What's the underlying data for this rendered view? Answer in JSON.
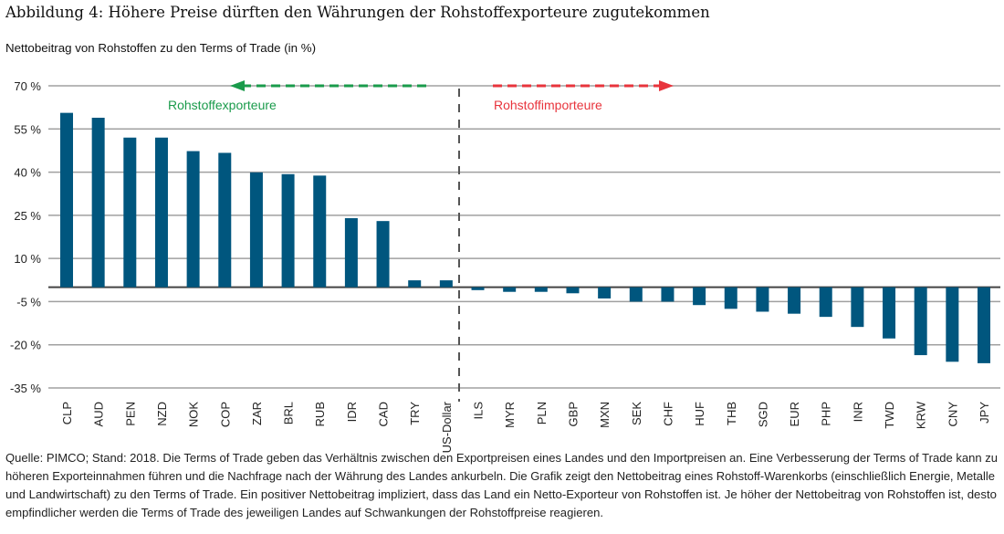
{
  "title": "Abbildung 4: Höhere Preise dürften den Währungen der Rohstoffexporteure zugutekommen",
  "chart_data": {
    "type": "bar",
    "title": "Abbildung 4: Höhere Preise dürften den Währungen der Rohstoffexporteure zugutekommen",
    "ylabel": "Nettobeitrag von Rohstoffen zu den Terms of Trade (in %)",
    "xlabel": "",
    "ylim": [
      -35,
      70
    ],
    "yticks": [
      70,
      55,
      40,
      25,
      10,
      -5,
      -20,
      -35
    ],
    "ytick_labels": [
      "70 %",
      "55 %",
      "40 %",
      "25 %",
      "10 %",
      "-5 %",
      "-20 %",
      "-35 %"
    ],
    "grid": true,
    "categories": [
      "CLP",
      "AUD",
      "PEN",
      "NZD",
      "NOK",
      "COP",
      "ZAR",
      "BRL",
      "RUB",
      "IDR",
      "CAD",
      "TRY",
      "US-Dollar",
      "ILS",
      "MYR",
      "PLN",
      "GBP",
      "MXN",
      "SEK",
      "CHF",
      "HUF",
      "THB",
      "SGD",
      "EUR",
      "PHP",
      "INR",
      "TWD",
      "KRW",
      "CNY",
      "JPY"
    ],
    "values": [
      60.6,
      58.9,
      52.0,
      52.0,
      47.3,
      46.7,
      39.9,
      39.3,
      38.8,
      24.0,
      23.0,
      2.4,
      2.4,
      -1.0,
      -1.6,
      -1.6,
      -2.1,
      -3.9,
      -5.0,
      -5.0,
      -6.2,
      -7.5,
      -8.5,
      -9.2,
      -10.3,
      -13.8,
      -17.8,
      -23.6,
      -25.9,
      -26.4
    ],
    "bar_color": "#00567e",
    "annotations": [
      {
        "text": "Rohstoffexporteure",
        "color": "#1a9b4b",
        "arrow": "left"
      },
      {
        "text": "Rohstoffimporteure",
        "color": "#e8343c",
        "arrow": "right"
      }
    ],
    "divider_after": "US-Dollar"
  },
  "footnote_lines": [
    "Quelle: PIMCO; Stand: 2018. Die Terms of Trade geben das Verhältnis zwischen den Exportpreisen eines Landes und den Importpreisen an. Eine Verbesserung der Terms of Trade kann zu",
    "höheren Exporteinnahmen führen und die Nachfrage nach der Währung des Landes ankurbeln. Die Grafik zeigt den Nettobeitrag eines Rohstoff-Warenkorbs (einschließlich Energie, Metalle",
    "und Landwirtschaft) zu den Terms of Trade. Ein positiver Nettobeitrag impliziert, dass das Land ein Netto-Exporteur von Rohstoffen ist. Je höher der Nettobeitrag von Rohstoffen ist, desto",
    "empfindlicher werden die Terms of Trade des jeweiligen Landes auf Schwankungen der Rohstoffpreise reagieren."
  ]
}
